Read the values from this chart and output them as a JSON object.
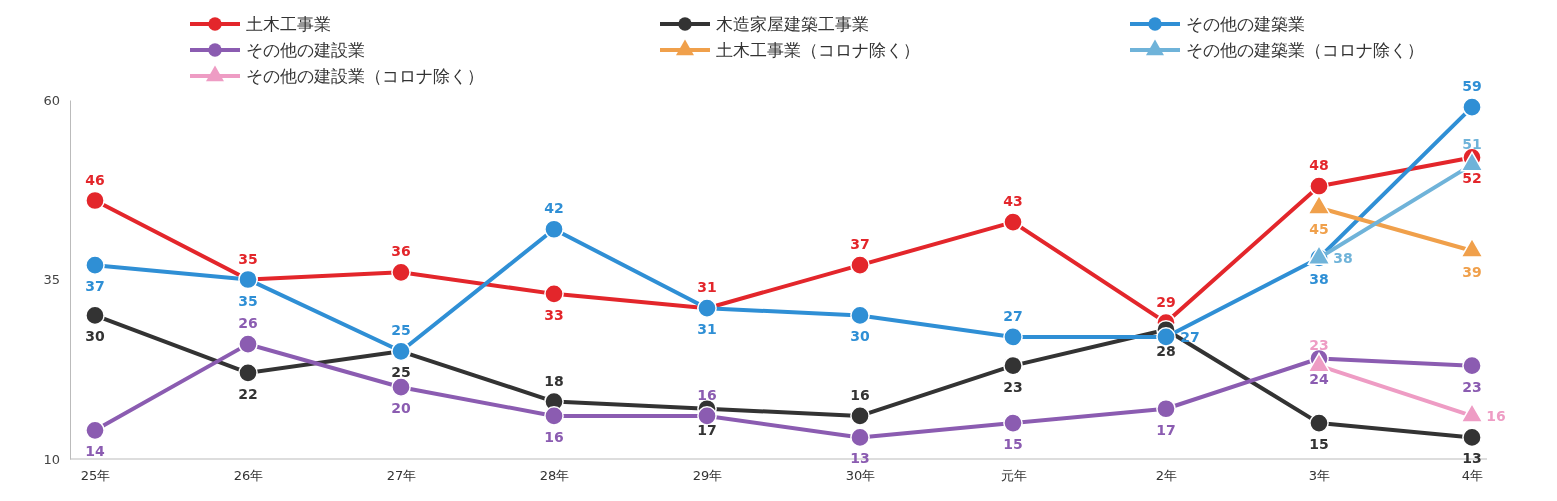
{
  "chart_data": {
    "type": "line",
    "categories": [
      "25年",
      "26年",
      "27年",
      "28年",
      "29年",
      "30年",
      "元年",
      "2年",
      "3年",
      "4年"
    ],
    "ylim": [
      10,
      60
    ],
    "yticks": [
      10,
      35,
      60
    ],
    "grid": false,
    "legend": "top",
    "data_labels": true,
    "series": [
      {
        "name": "土木工事業",
        "color": "#e3262b",
        "marker": "circle",
        "values": [
          46,
          35,
          36,
          33,
          31,
          37,
          43,
          29,
          48,
          52
        ]
      },
      {
        "name": "木造家屋建築工事業",
        "color": "#333333",
        "marker": "circle",
        "values": [
          30,
          22,
          25,
          18,
          17,
          16,
          23,
          28,
          15,
          13
        ]
      },
      {
        "name": "その他の建築業",
        "color": "#2f8fd5",
        "marker": "circle",
        "values": [
          37,
          35,
          25,
          42,
          31,
          30,
          27,
          27,
          38,
          59
        ]
      },
      {
        "name": "その他の建設業",
        "color": "#8b5cb1",
        "marker": "circle",
        "values": [
          14,
          26,
          20,
          16,
          16,
          13,
          15,
          17,
          24,
          23
        ]
      },
      {
        "name": "土木工事業（コロナ除く）",
        "color": "#f0a04b",
        "marker": "triangle",
        "values": [
          null,
          null,
          null,
          null,
          null,
          null,
          null,
          null,
          45,
          39
        ]
      },
      {
        "name": "その他の建築業（コロナ除く）",
        "color": "#6fb3d9",
        "marker": "triangle",
        "values": [
          null,
          null,
          null,
          null,
          null,
          null,
          null,
          null,
          38,
          51
        ]
      },
      {
        "name": "その他の建設業（コロナ除く）",
        "color": "#ee9cc4",
        "marker": "triangle",
        "values": [
          null,
          null,
          null,
          null,
          null,
          null,
          null,
          null,
          23,
          16
        ]
      }
    ]
  }
}
